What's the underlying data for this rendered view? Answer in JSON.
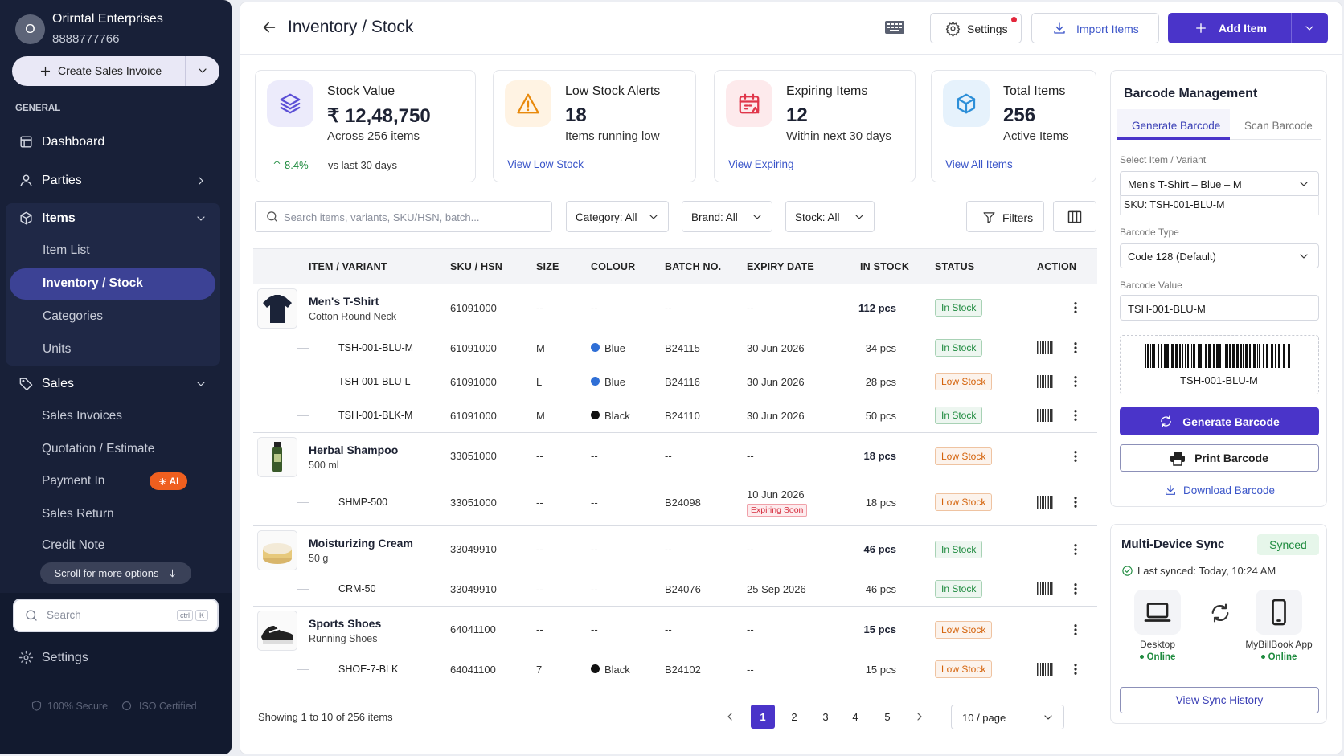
{
  "sidebar": {
    "avatar": "O",
    "company": "Orirntal Enterprises",
    "phone": "8888777766",
    "create_button": "Create Sales Invoice",
    "section": "GENERAL",
    "nav": [
      {
        "label": "Dashboard"
      },
      {
        "label": "Parties"
      },
      {
        "label": "Items",
        "children": [
          "Item List",
          "Inventory / Stock",
          "Categories",
          "Units"
        ]
      },
      {
        "label": "Sales",
        "children": [
          "Sales Invoices",
          "Quotation / Estimate",
          "Payment In",
          "Sales Return",
          "Credit Note"
        ]
      }
    ],
    "badge": "AI",
    "scroll_hint": "Scroll for more options",
    "search": "Search",
    "shortcut": [
      "ctrl",
      "K"
    ],
    "settings": "Settings",
    "footer": [
      "100% Secure",
      "ISO Certified"
    ]
  },
  "header": {
    "title": "Inventory / Stock",
    "buttons": [
      "Settings",
      "Import Items",
      "Add Item"
    ]
  },
  "stats": [
    {
      "title": "Stock Value",
      "value": "₹ 12,48,750",
      "sub": "Across 256 items",
      "trend": "8.4%",
      "trend_note": "vs last 30 days",
      "color": "#5b4fd6",
      "bg": "#ecebfb"
    },
    {
      "title": "Low Stock Alerts",
      "value": "18",
      "sub": "Items running low",
      "link": "View Low Stock",
      "color": "#e8890c",
      "bg": "#fff3e3"
    },
    {
      "title": "Expiring Items",
      "value": "12",
      "sub": "Within next 30 days",
      "link": "View Expiring",
      "color": "#e0364a",
      "bg": "#fdeaec"
    },
    {
      "title": "Total Items",
      "value": "256",
      "sub": "Active Items",
      "link": "View All Items",
      "color": "#2d8fd8",
      "bg": "#e6f2fc"
    }
  ],
  "filters": {
    "search": "Search items, variants, SKU/HSN, batch...",
    "dropdowns": [
      "Category: All",
      "Brand: All",
      "Stock: All"
    ],
    "button": "Filters"
  },
  "table": {
    "columns": [
      "ITEM / VARIANT",
      "SKU / HSN",
      "SIZE",
      "COLOUR",
      "BATCH NO.",
      "EXPIRY DATE",
      "IN STOCK",
      "STATUS",
      "ACTION"
    ],
    "groups": [
      {
        "name": "Men's T-Shirt",
        "sub": "Cotton Round Neck",
        "sku": "61091000",
        "size": "--",
        "colour": "--",
        "batch": "--",
        "expiry": "--",
        "stock": "112 pcs",
        "status": "In Stock",
        "status_color": "#1f8b3f",
        "variants": [
          {
            "sku": "TSH-001-BLU-M",
            "hsn": "61091000",
            "size": "M",
            "colour": "Blue",
            "color": "#2f6fd6",
            "batch": "B24115",
            "expiry": "30 Jun 2026",
            "stock": "34 pcs",
            "status": "In Stock",
            "status_color": "#1f8b3f"
          },
          {
            "sku": "TSH-001-BLU-L",
            "hsn": "61091000",
            "size": "L",
            "colour": "Blue",
            "color": "#2f6fd6",
            "batch": "B24116",
            "expiry": "30 Jun 2026",
            "stock": "28 pcs",
            "status": "Low Stock",
            "status_color": "#d4630b"
          },
          {
            "sku": "TSH-001-BLK-M",
            "hsn": "61091000",
            "size": "M",
            "colour": "Black",
            "color": "#111111",
            "batch": "B24110",
            "expiry": "30 Jun 2026",
            "stock": "50 pcs",
            "status": "In Stock",
            "status_color": "#1f8b3f"
          }
        ]
      },
      {
        "name": "Herbal Shampoo",
        "sub": "500 ml",
        "sku": "33051000",
        "size": "--",
        "colour": "--",
        "batch": "--",
        "expiry": "--",
        "stock": "18 pcs",
        "status": "Low Stock",
        "status_color": "#d4630b",
        "variants": [
          {
            "sku": "SHMP-500",
            "hsn": "33051000",
            "size": "--",
            "colour": "--",
            "batch": "B24098",
            "expiry": "10 Jun 2026",
            "tag": "Expiring Soon",
            "stock": "18 pcs",
            "status": "Low Stock",
            "status_color": "#d4630b"
          }
        ]
      },
      {
        "name": "Moisturizing Cream",
        "sub": "50 g",
        "sku": "33049910",
        "size": "--",
        "colour": "--",
        "batch": "--",
        "expiry": "--",
        "stock": "46 pcs",
        "status": "In Stock",
        "status_color": "#1f8b3f",
        "variants": [
          {
            "sku": "CRM-50",
            "hsn": "33049910",
            "size": "--",
            "colour": "--",
            "batch": "B24076",
            "expiry": "25 Sep 2026",
            "stock": "46 pcs",
            "status": "In Stock",
            "status_color": "#1f8b3f"
          }
        ]
      },
      {
        "name": "Sports Shoes",
        "sub": "Running Shoes",
        "sku": "64041100",
        "size": "--",
        "colour": "--",
        "batch": "--",
        "expiry": "--",
        "stock": "15 pcs",
        "status": "Low Stock",
        "status_color": "#d4630b",
        "variants": [
          {
            "sku": "SHOE-7-BLK",
            "hsn": "64041100",
            "size": "7",
            "colour": "Black",
            "color": "#111111",
            "batch": "B24102",
            "expiry": "--",
            "stock": "15 pcs",
            "status": "Low Stock",
            "status_color": "#d4630b"
          }
        ]
      }
    ]
  },
  "pagination": {
    "summary": "Showing 1 to 10 of 256 items",
    "pages": [
      1,
      2,
      3,
      4,
      5
    ],
    "current": 1,
    "page_size": "10 / page"
  },
  "barcode": {
    "title": "Barcode Management",
    "tabs": [
      "Generate Barcode",
      "Scan Barcode"
    ],
    "item_label": "Select Item / Variant",
    "item": "Men's T-Shirt – Blue – M",
    "sku": "SKU: TSH-001-BLU-M",
    "type_label": "Barcode Type",
    "type": "Code 128 (Default)",
    "value_label": "Barcode Value",
    "value": "TSH-001-BLU-M",
    "caption": "TSH-001-BLU-M",
    "buttons": [
      "Generate Barcode",
      "Print Barcode",
      "Download Barcode"
    ]
  },
  "sync": {
    "title": "Multi-Device Sync",
    "status": "Synced",
    "last": "Last synced: Today, 10:24 AM",
    "devices": [
      {
        "name": "Desktop",
        "state": "Online"
      },
      {
        "name": "MyBillBook App",
        "state": "Online"
      }
    ],
    "button": "View Sync History"
  }
}
